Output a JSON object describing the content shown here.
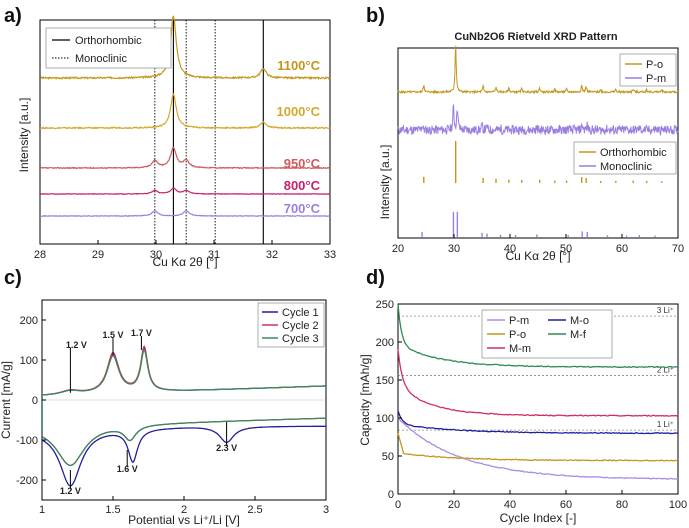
{
  "panels": [
    "a)",
    "b)",
    "c)",
    "d)"
  ],
  "colors": {
    "c1100": "#C4961A",
    "c1000": "#D4A92A",
    "c950": "#D05A60",
    "c800": "#C8206A",
    "c700": "#9B7FE0",
    "po": "#C4961A",
    "pm": "#9B7FE0",
    "cycle1": "#1F1FA0",
    "cycle2": "#D0305A",
    "cycle3": "#3A8A5A",
    "Pm": "#A98BE8",
    "Po": "#C4961A",
    "Mo": "#1F1FA0",
    "Mm": "#D0305A",
    "Mf": "#2E8B57"
  },
  "chart_data": [
    {
      "id": "a",
      "type": "line",
      "xlabel": "Cu Kα 2θ [°]",
      "ylabel": "Intensity [a.u.]",
      "xlim": [
        28,
        33
      ],
      "xticks": [
        "28",
        "29",
        "30",
        "31",
        "32",
        "33"
      ],
      "legend": [
        "Orthorhombic",
        "Monoclinic"
      ],
      "ortho_lines": [
        30.3,
        31.85
      ],
      "mono_lines": [
        29.98,
        30.52,
        31.02
      ],
      "series": [
        {
          "name": "1100°C",
          "peaks": [
            [
              30.3,
              1.0
            ],
            [
              31.85,
              0.15
            ]
          ]
        },
        {
          "name": "1000°C",
          "peaks": [
            [
              30.3,
              0.7
            ],
            [
              31.85,
              0.12
            ]
          ]
        },
        {
          "name": "950°C",
          "peaks": [
            [
              29.98,
              0.2
            ],
            [
              30.3,
              0.55
            ],
            [
              30.52,
              0.2
            ]
          ]
        },
        {
          "name": "800°C",
          "peaks": [
            [
              29.98,
              0.15
            ],
            [
              30.3,
              0.25
            ],
            [
              30.52,
              0.15
            ]
          ]
        },
        {
          "name": "700°C",
          "peaks": [
            [
              29.98,
              0.22
            ],
            [
              30.52,
              0.22
            ]
          ]
        }
      ]
    },
    {
      "id": "b",
      "type": "line",
      "title": "CuNb2O6 Rietveld XRD Pattern",
      "xlabel": "Cu Kα 2θ [°]",
      "ylabel": "Intensity [a.u.]",
      "xlim": [
        20,
        70
      ],
      "xticks": [
        "20",
        "30",
        "40",
        "50",
        "60",
        "70"
      ],
      "legend_top": [
        "P-o",
        "P-m"
      ],
      "legend_bottom": [
        "Orthorhombic",
        "Monoclinic"
      ],
      "ortho_refs": [
        [
          24.6,
          0.15
        ],
        [
          30.3,
          1.0
        ],
        [
          35.2,
          0.12
        ],
        [
          37.5,
          0.1
        ],
        [
          39.8,
          0.08
        ],
        [
          42.1,
          0.07
        ],
        [
          45.3,
          0.08
        ],
        [
          48.0,
          0.06
        ],
        [
          50.1,
          0.06
        ],
        [
          52.8,
          0.14
        ],
        [
          53.6,
          0.12
        ],
        [
          56.2,
          0.05
        ],
        [
          58.9,
          0.05
        ],
        [
          62.0,
          0.06
        ],
        [
          64.4,
          0.05
        ],
        [
          67.1,
          0.04
        ]
      ],
      "mono_refs": [
        [
          24.3,
          0.18
        ],
        [
          29.9,
          0.9
        ],
        [
          30.6,
          0.9
        ],
        [
          35.0,
          0.15
        ],
        [
          35.9,
          0.12
        ],
        [
          38.3,
          0.08
        ],
        [
          41.0,
          0.07
        ],
        [
          44.8,
          0.09
        ],
        [
          50.4,
          0.06
        ],
        [
          52.9,
          0.2
        ],
        [
          53.8,
          0.18
        ],
        [
          57.4,
          0.06
        ],
        [
          60.8,
          0.05
        ],
        [
          63.1,
          0.07
        ],
        [
          65.9,
          0.05
        ]
      ]
    },
    {
      "id": "c",
      "type": "line",
      "xlabel": "Potential vs Li⁺/Li [V]",
      "ylabel": "Current [mA/g]",
      "xlim": [
        1,
        3
      ],
      "ylim": [
        -250,
        250
      ],
      "xticks": [
        "1",
        "1.5",
        "2",
        "2.5",
        "3"
      ],
      "yticks": [
        "-200",
        "-100",
        "0",
        "100",
        "200"
      ],
      "legend": [
        "Cycle 1",
        "Cycle 2",
        "Cycle 3"
      ],
      "annotations": [
        "1.2 V",
        "1.5 V",
        "1.7 V",
        "1.2 V",
        "1.6 V",
        "2.3 V"
      ]
    },
    {
      "id": "d",
      "type": "line",
      "xlabel": "Cycle Index [-]",
      "ylabel": "Capacity [mAh/g]",
      "xlim": [
        0,
        100
      ],
      "ylim": [
        0,
        250
      ],
      "xticks": [
        "0",
        "20",
        "40",
        "60",
        "80",
        "100"
      ],
      "yticks": [
        "0",
        "50",
        "100",
        "150",
        "200",
        "250"
      ],
      "reference_lines": [
        {
          "label": "3 Li⁺",
          "y": 234
        },
        {
          "label": "2 Li⁺",
          "y": 156
        },
        {
          "label": "1 Li⁺",
          "y": 84
        }
      ],
      "series": [
        {
          "name": "P-m",
          "start": 100,
          "end": 19
        },
        {
          "name": "P-o",
          "start": 80,
          "end": 44
        },
        {
          "name": "M-m",
          "start": 190,
          "end": 103
        },
        {
          "name": "M-o",
          "start": 110,
          "end": 80
        },
        {
          "name": "M-f",
          "start": 250,
          "end": 167
        }
      ]
    }
  ]
}
